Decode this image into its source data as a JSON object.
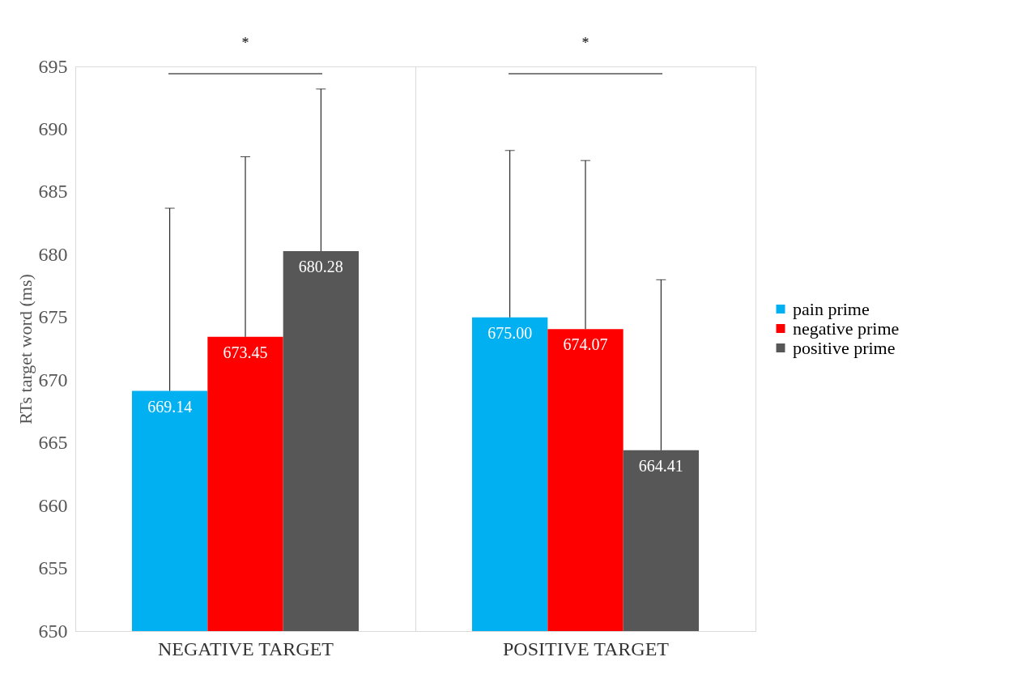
{
  "chart_data": {
    "type": "bar",
    "ylabel": "RTs target word (ms)",
    "categories": [
      "NEGATIVE TARGET",
      "POSITIVE TARGET"
    ],
    "series": [
      {
        "name": "pain prime",
        "color": "#00b0f0",
        "values": [
          669.14,
          675.0
        ],
        "value_labels": [
          "669.14",
          "675.00"
        ],
        "errors": [
          [
            669.14,
            683.7
          ],
          [
            675.0,
            688.3
          ]
        ]
      },
      {
        "name": "negative prime",
        "color": "#ff0000",
        "values": [
          673.45,
          674.07
        ],
        "value_labels": [
          "673.45",
          "674.07"
        ],
        "errors": [
          [
            673.45,
            687.8
          ],
          [
            674.07,
            687.5
          ]
        ]
      },
      {
        "name": "positive prime",
        "color": "#575757",
        "values": [
          680.28,
          664.41
        ],
        "value_labels": [
          "680.28",
          "664.41"
        ],
        "errors": [
          [
            680.28,
            693.2
          ],
          [
            664.41,
            678.0
          ]
        ]
      }
    ],
    "ylim": [
      650,
      695
    ],
    "yticks": [
      650,
      655,
      660,
      665,
      670,
      675,
      680,
      685,
      690,
      695
    ],
    "grid": "x",
    "legend": "right",
    "annotations": [
      "*",
      "*"
    ]
  }
}
